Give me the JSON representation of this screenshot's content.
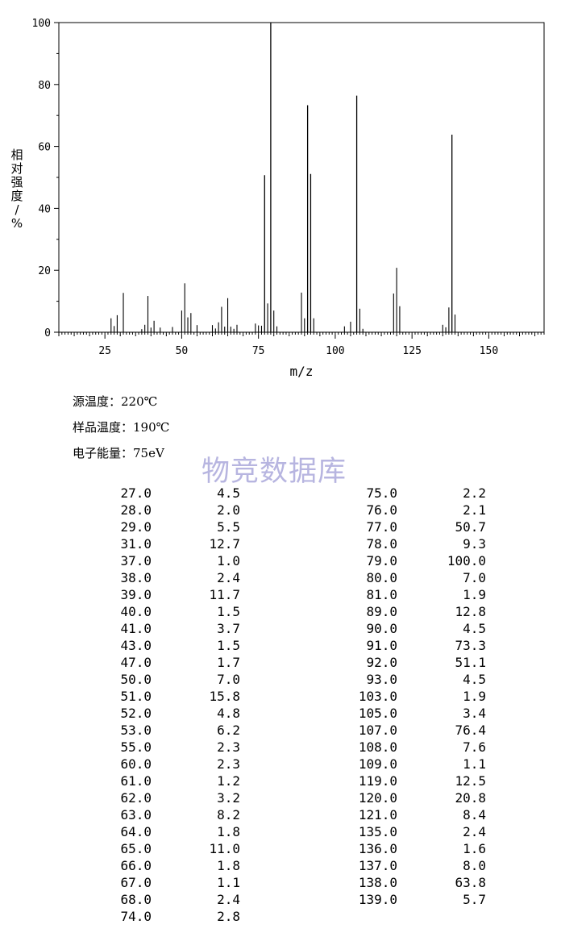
{
  "chart_data": {
    "type": "bar",
    "xlabel": "m/z",
    "ylabel": "相对强度/%",
    "xlim": [
      10,
      168
    ],
    "ylim": [
      0,
      100
    ],
    "xticks": [
      25,
      50,
      75,
      100,
      125,
      150
    ],
    "yticks": [
      0,
      20,
      40,
      60,
      80,
      100
    ],
    "grid": false,
    "peaks": [
      [
        27.0,
        4.5
      ],
      [
        28.0,
        2.0
      ],
      [
        29.0,
        5.5
      ],
      [
        31.0,
        12.7
      ],
      [
        37.0,
        1.0
      ],
      [
        38.0,
        2.4
      ],
      [
        39.0,
        11.7
      ],
      [
        40.0,
        1.5
      ],
      [
        41.0,
        3.7
      ],
      [
        43.0,
        1.5
      ],
      [
        47.0,
        1.7
      ],
      [
        50.0,
        7.0
      ],
      [
        51.0,
        15.8
      ],
      [
        52.0,
        4.8
      ],
      [
        53.0,
        6.2
      ],
      [
        55.0,
        2.3
      ],
      [
        60.0,
        2.3
      ],
      [
        61.0,
        1.2
      ],
      [
        62.0,
        3.2
      ],
      [
        63.0,
        8.2
      ],
      [
        64.0,
        1.8
      ],
      [
        65.0,
        11.0
      ],
      [
        66.0,
        1.8
      ],
      [
        67.0,
        1.1
      ],
      [
        68.0,
        2.4
      ],
      [
        74.0,
        2.8
      ],
      [
        75.0,
        2.2
      ],
      [
        76.0,
        2.1
      ],
      [
        77.0,
        50.7
      ],
      [
        78.0,
        9.3
      ],
      [
        79.0,
        100.0
      ],
      [
        80.0,
        7.0
      ],
      [
        81.0,
        1.9
      ],
      [
        89.0,
        12.8
      ],
      [
        90.0,
        4.5
      ],
      [
        91.0,
        73.3
      ],
      [
        92.0,
        51.1
      ],
      [
        93.0,
        4.5
      ],
      [
        103.0,
        1.9
      ],
      [
        105.0,
        3.4
      ],
      [
        107.0,
        76.4
      ],
      [
        108.0,
        7.6
      ],
      [
        109.0,
        1.1
      ],
      [
        119.0,
        12.5
      ],
      [
        120.0,
        20.8
      ],
      [
        121.0,
        8.4
      ],
      [
        135.0,
        2.4
      ],
      [
        136.0,
        1.6
      ],
      [
        137.0,
        8.0
      ],
      [
        138.0,
        63.8
      ],
      [
        139.0,
        5.7
      ]
    ]
  },
  "conditions": {
    "source_temp": "源温度：220℃",
    "sample_temp": "样品温度：190℃",
    "energy": "电子能量：75eV"
  },
  "watermark": "物竞数据库",
  "table": {
    "left": [
      [
        "27.0",
        "4.5"
      ],
      [
        "28.0",
        "2.0"
      ],
      [
        "29.0",
        "5.5"
      ],
      [
        "31.0",
        "12.7"
      ],
      [
        "37.0",
        "1.0"
      ],
      [
        "38.0",
        "2.4"
      ],
      [
        "39.0",
        "11.7"
      ],
      [
        "40.0",
        "1.5"
      ],
      [
        "41.0",
        "3.7"
      ],
      [
        "43.0",
        "1.5"
      ],
      [
        "47.0",
        "1.7"
      ],
      [
        "50.0",
        "7.0"
      ],
      [
        "51.0",
        "15.8"
      ],
      [
        "52.0",
        "4.8"
      ],
      [
        "53.0",
        "6.2"
      ],
      [
        "55.0",
        "2.3"
      ],
      [
        "60.0",
        "2.3"
      ],
      [
        "61.0",
        "1.2"
      ],
      [
        "62.0",
        "3.2"
      ],
      [
        "63.0",
        "8.2"
      ],
      [
        "64.0",
        "1.8"
      ],
      [
        "65.0",
        "11.0"
      ],
      [
        "66.0",
        "1.8"
      ],
      [
        "67.0",
        "1.1"
      ],
      [
        "68.0",
        "2.4"
      ],
      [
        "74.0",
        "2.8"
      ]
    ],
    "right": [
      [
        "75.0",
        "2.2"
      ],
      [
        "76.0",
        "2.1"
      ],
      [
        "77.0",
        "50.7"
      ],
      [
        "78.0",
        "9.3"
      ],
      [
        "79.0",
        "100.0"
      ],
      [
        "80.0",
        "7.0"
      ],
      [
        "81.0",
        "1.9"
      ],
      [
        "89.0",
        "12.8"
      ],
      [
        "90.0",
        "4.5"
      ],
      [
        "91.0",
        "73.3"
      ],
      [
        "92.0",
        "51.1"
      ],
      [
        "93.0",
        "4.5"
      ],
      [
        "103.0",
        "1.9"
      ],
      [
        "105.0",
        "3.4"
      ],
      [
        "107.0",
        "76.4"
      ],
      [
        "108.0",
        "7.6"
      ],
      [
        "109.0",
        "1.1"
      ],
      [
        "119.0",
        "12.5"
      ],
      [
        "120.0",
        "20.8"
      ],
      [
        "121.0",
        "8.4"
      ],
      [
        "135.0",
        "2.4"
      ],
      [
        "136.0",
        "1.6"
      ],
      [
        "137.0",
        "8.0"
      ],
      [
        "138.0",
        "63.8"
      ],
      [
        "139.0",
        "5.7"
      ]
    ]
  }
}
